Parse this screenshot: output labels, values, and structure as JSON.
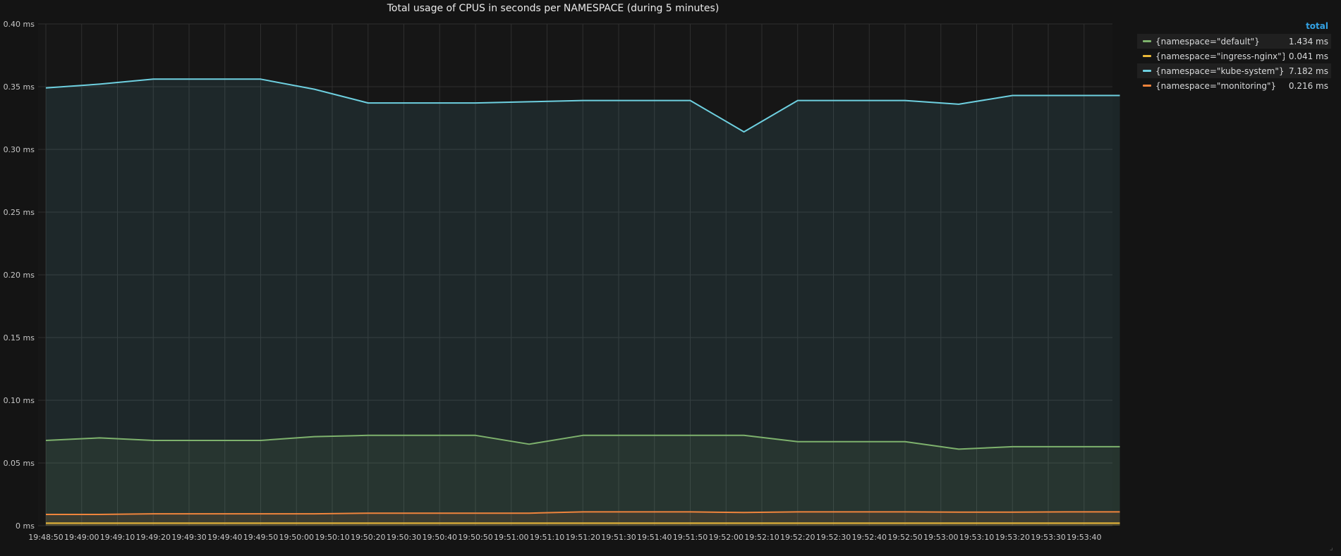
{
  "panel": {
    "title": "Total usage of CPUS in seconds per NAMESPACE (during 5 minutes)",
    "resize_icon": "resize-corner-icon"
  },
  "legend": {
    "header": "total",
    "items": [
      {
        "name": "{namespace=\"default\"}",
        "value": "1.434 ms",
        "color": "#7eb26d"
      },
      {
        "name": "{namespace=\"ingress-nginx\"}",
        "value": "0.041 ms",
        "color": "#eab839"
      },
      {
        "name": "{namespace=\"kube-system\"}",
        "value": "7.182 ms",
        "color": "#6ed0e0"
      },
      {
        "name": "{namespace=\"monitoring\"}",
        "value": "0.216 ms",
        "color": "#ef843c"
      }
    ]
  },
  "chart_data": {
    "type": "area",
    "title": "Total usage of CPUS in seconds per NAMESPACE (during 5 minutes)",
    "xlabel": "",
    "ylabel": "",
    "ylim": [
      0,
      0.4
    ],
    "grid": true,
    "legend_position": "right",
    "yticks": [
      "0 ms",
      "0.05 ms",
      "0.10 ms",
      "0.15 ms",
      "0.20 ms",
      "0.25 ms",
      "0.30 ms",
      "0.35 ms",
      "0.40 ms"
    ],
    "x": [
      "19:48:50",
      "19:49:00",
      "19:49:10",
      "19:49:20",
      "19:49:30",
      "19:49:40",
      "19:49:50",
      "19:50:00",
      "19:50:10",
      "19:50:20",
      "19:50:30",
      "19:50:40",
      "19:50:50",
      "19:51:00",
      "19:51:10",
      "19:51:20",
      "19:51:30",
      "19:51:40",
      "19:51:50",
      "19:52:00",
      "19:52:10",
      "19:52:20",
      "19:52:30",
      "19:52:40",
      "19:52:50",
      "19:53:00",
      "19:53:10",
      "19:53:20",
      "19:53:30",
      "19:53:40"
    ],
    "series": [
      {
        "name": "{namespace=\"kube-system\"}",
        "color": "#6ed0e0",
        "points": [
          [
            "19:48:50",
            0.349
          ],
          [
            "19:49:05",
            0.352
          ],
          [
            "19:49:20",
            0.356
          ],
          [
            "19:49:35",
            0.356
          ],
          [
            "19:49:50",
            0.356
          ],
          [
            "19:50:05",
            0.348
          ],
          [
            "19:50:20",
            0.337
          ],
          [
            "19:50:35",
            0.337
          ],
          [
            "19:50:50",
            0.337
          ],
          [
            "19:51:05",
            0.338
          ],
          [
            "19:51:20",
            0.339
          ],
          [
            "19:51:35",
            0.339
          ],
          [
            "19:51:50",
            0.339
          ],
          [
            "19:52:05",
            0.314
          ],
          [
            "19:52:20",
            0.339
          ],
          [
            "19:52:35",
            0.339
          ],
          [
            "19:52:50",
            0.339
          ],
          [
            "19:53:05",
            0.336
          ],
          [
            "19:53:20",
            0.343
          ],
          [
            "19:53:35",
            0.343
          ],
          [
            "19:53:50",
            0.343
          ]
        ]
      },
      {
        "name": "{namespace=\"default\"}",
        "color": "#7eb26d",
        "points": [
          [
            "19:48:50",
            0.068
          ],
          [
            "19:49:05",
            0.07
          ],
          [
            "19:49:20",
            0.068
          ],
          [
            "19:49:35",
            0.068
          ],
          [
            "19:49:50",
            0.068
          ],
          [
            "19:50:05",
            0.071
          ],
          [
            "19:50:20",
            0.072
          ],
          [
            "19:50:35",
            0.072
          ],
          [
            "19:50:50",
            0.072
          ],
          [
            "19:51:05",
            0.065
          ],
          [
            "19:51:20",
            0.072
          ],
          [
            "19:51:35",
            0.072
          ],
          [
            "19:51:50",
            0.072
          ],
          [
            "19:52:05",
            0.072
          ],
          [
            "19:52:20",
            0.067
          ],
          [
            "19:52:35",
            0.067
          ],
          [
            "19:52:50",
            0.067
          ],
          [
            "19:53:05",
            0.061
          ],
          [
            "19:53:20",
            0.063
          ],
          [
            "19:53:35",
            0.063
          ],
          [
            "19:53:50",
            0.063
          ]
        ]
      },
      {
        "name": "{namespace=\"monitoring\"}",
        "color": "#ef843c",
        "points": [
          [
            "19:48:50",
            0.009
          ],
          [
            "19:49:05",
            0.009
          ],
          [
            "19:49:20",
            0.0095
          ],
          [
            "19:49:35",
            0.0095
          ],
          [
            "19:49:50",
            0.0095
          ],
          [
            "19:50:05",
            0.0095
          ],
          [
            "19:50:20",
            0.01
          ],
          [
            "19:50:35",
            0.01
          ],
          [
            "19:50:50",
            0.01
          ],
          [
            "19:51:05",
            0.01
          ],
          [
            "19:51:20",
            0.011
          ],
          [
            "19:51:35",
            0.011
          ],
          [
            "19:51:50",
            0.011
          ],
          [
            "19:52:05",
            0.0105
          ],
          [
            "19:52:20",
            0.011
          ],
          [
            "19:52:35",
            0.011
          ],
          [
            "19:52:50",
            0.011
          ],
          [
            "19:53:05",
            0.0108
          ],
          [
            "19:53:20",
            0.0108
          ],
          [
            "19:53:35",
            0.011
          ],
          [
            "19:53:50",
            0.011
          ]
        ]
      },
      {
        "name": "{namespace=\"ingress-nginx\"}",
        "color": "#eab839",
        "points": [
          [
            "19:48:50",
            0.002
          ],
          [
            "19:49:05",
            0.002
          ],
          [
            "19:49:20",
            0.002
          ],
          [
            "19:49:35",
            0.002
          ],
          [
            "19:49:50",
            0.002
          ],
          [
            "19:50:05",
            0.002
          ],
          [
            "19:50:20",
            0.002
          ],
          [
            "19:50:35",
            0.002
          ],
          [
            "19:50:50",
            0.002
          ],
          [
            "19:51:05",
            0.002
          ],
          [
            "19:51:20",
            0.002
          ],
          [
            "19:51:35",
            0.002
          ],
          [
            "19:51:50",
            0.002
          ],
          [
            "19:52:05",
            0.002
          ],
          [
            "19:52:20",
            0.002
          ],
          [
            "19:52:35",
            0.002
          ],
          [
            "19:52:50",
            0.002
          ],
          [
            "19:53:05",
            0.002
          ],
          [
            "19:53:20",
            0.002
          ],
          [
            "19:53:35",
            0.002
          ],
          [
            "19:53:50",
            0.002
          ]
        ]
      }
    ]
  }
}
